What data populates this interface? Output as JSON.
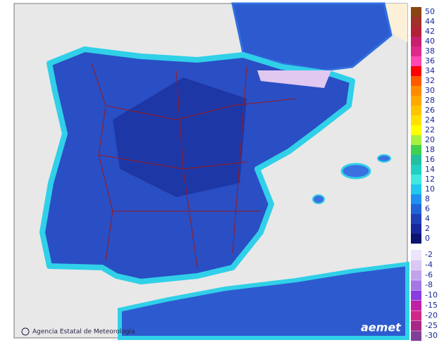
{
  "credit": "Agencia Estatal de Meteorología",
  "logo": "aemet",
  "legend": {
    "entries": [
      {
        "value": 50,
        "color": "#8b4513"
      },
      {
        "value": 44,
        "color": "#a0302a"
      },
      {
        "value": 42,
        "color": "#b22234"
      },
      {
        "value": 40,
        "color": "#c8206e"
      },
      {
        "value": 38,
        "color": "#e0288c"
      },
      {
        "value": 36,
        "color": "#ff48b0"
      },
      {
        "value": 34,
        "color": "#ff0000"
      },
      {
        "value": 32,
        "color": "#ff5a00"
      },
      {
        "value": 30,
        "color": "#ff8c00"
      },
      {
        "value": 28,
        "color": "#ffa800"
      },
      {
        "value": 26,
        "color": "#ffc400"
      },
      {
        "value": 24,
        "color": "#ffe000"
      },
      {
        "value": 22,
        "color": "#ffff00"
      },
      {
        "value": 20,
        "color": "#a8f040"
      },
      {
        "value": 18,
        "color": "#40d050"
      },
      {
        "value": 16,
        "color": "#20c0a0"
      },
      {
        "value": 14,
        "color": "#20d0c0"
      },
      {
        "value": 12,
        "color": "#40e8e0"
      },
      {
        "value": 10,
        "color": "#20c8f0"
      },
      {
        "value": 8,
        "color": "#2090f0"
      },
      {
        "value": 6,
        "color": "#2064d8"
      },
      {
        "value": 4,
        "color": "#2040b8"
      },
      {
        "value": 2,
        "color": "#18289a"
      },
      {
        "value": 0,
        "color": "#0c1470"
      },
      {
        "value": -2,
        "color": "#ece4fa"
      },
      {
        "value": -4,
        "color": "#d8c8f4"
      },
      {
        "value": -6,
        "color": "#c0a4ec"
      },
      {
        "value": -8,
        "color": "#a478e4"
      },
      {
        "value": -10,
        "color": "#8a3ce0"
      },
      {
        "value": -15,
        "color": "#c020a8"
      },
      {
        "value": -20,
        "color": "#d02888"
      },
      {
        "value": -25,
        "color": "#a82888"
      },
      {
        "value": -30,
        "color": "#804098"
      }
    ]
  }
}
